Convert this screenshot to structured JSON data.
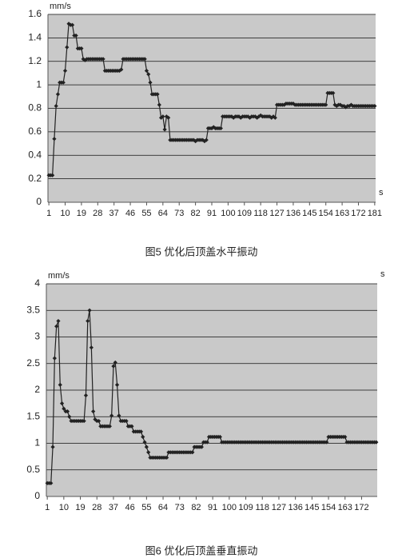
{
  "chart_data": [
    {
      "type": "line",
      "y_unit": "mm/s",
      "x_unit": "s",
      "caption": "图5 优化后顶盖水平振动",
      "ylim": [
        0,
        1.6
      ],
      "yticks": [
        0,
        0.2,
        0.4,
        0.6,
        0.8,
        1,
        1.2,
        1.4,
        1.6
      ],
      "xlim": [
        0.5,
        181.5
      ],
      "xticks": [
        1,
        10,
        19,
        28,
        37,
        46,
        55,
        64,
        73,
        82,
        91,
        100,
        109,
        118,
        127,
        136,
        145,
        154,
        163,
        172,
        181
      ],
      "grid": true,
      "color": "#222222",
      "plot_background": "#c9c9c9",
      "x": [
        1,
        2,
        3,
        4,
        5,
        6,
        7,
        8,
        9,
        10,
        11,
        12,
        13,
        14,
        15,
        16,
        17,
        18,
        19,
        20,
        21,
        22,
        23,
        24,
        25,
        26,
        27,
        28,
        29,
        30,
        31,
        32,
        33,
        34,
        35,
        36,
        37,
        38,
        39,
        40,
        41,
        42,
        43,
        44,
        45,
        46,
        47,
        48,
        49,
        50,
        51,
        52,
        53,
        54,
        55,
        56,
        57,
        58,
        59,
        60,
        61,
        62,
        63,
        64,
        65,
        66,
        67,
        68,
        69,
        70,
        71,
        72,
        73,
        74,
        75,
        76,
        77,
        78,
        79,
        80,
        81,
        82,
        83,
        84,
        85,
        86,
        87,
        88,
        89,
        90,
        91,
        92,
        93,
        94,
        95,
        96,
        97,
        98,
        99,
        100,
        101,
        102,
        103,
        104,
        105,
        106,
        107,
        108,
        109,
        110,
        111,
        112,
        113,
        114,
        115,
        116,
        117,
        118,
        119,
        120,
        121,
        122,
        123,
        124,
        125,
        126,
        127,
        128,
        129,
        130,
        131,
        132,
        133,
        134,
        135,
        136,
        137,
        138,
        139,
        140,
        141,
        142,
        143,
        144,
        145,
        146,
        147,
        148,
        149,
        150,
        151,
        152,
        153,
        154,
        155,
        156,
        157,
        158,
        159,
        160,
        161,
        162,
        163,
        164,
        165,
        166,
        167,
        168,
        169,
        170,
        171,
        172,
        173,
        174,
        175,
        176,
        177,
        178,
        179,
        180,
        181
      ],
      "values": [
        0.23,
        0.23,
        0.23,
        0.54,
        0.82,
        0.92,
        1.02,
        1.02,
        1.02,
        1.12,
        1.32,
        1.52,
        1.51,
        1.51,
        1.42,
        1.42,
        1.31,
        1.31,
        1.31,
        1.22,
        1.21,
        1.22,
        1.22,
        1.22,
        1.22,
        1.22,
        1.22,
        1.22,
        1.22,
        1.22,
        1.22,
        1.12,
        1.12,
        1.12,
        1.12,
        1.12,
        1.12,
        1.12,
        1.12,
        1.12,
        1.13,
        1.22,
        1.22,
        1.22,
        1.22,
        1.22,
        1.22,
        1.22,
        1.22,
        1.22,
        1.22,
        1.22,
        1.22,
        1.22,
        1.12,
        1.09,
        1.02,
        0.92,
        0.92,
        0.92,
        0.92,
        0.83,
        0.72,
        0.73,
        0.62,
        0.73,
        0.72,
        0.53,
        0.53,
        0.53,
        0.53,
        0.53,
        0.53,
        0.53,
        0.53,
        0.53,
        0.53,
        0.53,
        0.53,
        0.53,
        0.53,
        0.52,
        0.53,
        0.53,
        0.53,
        0.53,
        0.52,
        0.53,
        0.63,
        0.63,
        0.63,
        0.64,
        0.63,
        0.63,
        0.63,
        0.63,
        0.73,
        0.73,
        0.73,
        0.73,
        0.73,
        0.73,
        0.72,
        0.73,
        0.73,
        0.73,
        0.72,
        0.73,
        0.73,
        0.73,
        0.73,
        0.72,
        0.73,
        0.73,
        0.73,
        0.72,
        0.73,
        0.74,
        0.73,
        0.73,
        0.73,
        0.73,
        0.73,
        0.72,
        0.73,
        0.72,
        0.83,
        0.83,
        0.83,
        0.83,
        0.83,
        0.84,
        0.84,
        0.84,
        0.84,
        0.84,
        0.83,
        0.83,
        0.83,
        0.83,
        0.83,
        0.83,
        0.83,
        0.83,
        0.83,
        0.83,
        0.83,
        0.83,
        0.83,
        0.83,
        0.83,
        0.83,
        0.83,
        0.83,
        0.93,
        0.93,
        0.93,
        0.93,
        0.83,
        0.82,
        0.83,
        0.83,
        0.82,
        0.82,
        0.81,
        0.82,
        0.82,
        0.83,
        0.82,
        0.82,
        0.82,
        0.82,
        0.82,
        0.82,
        0.82,
        0.82,
        0.82,
        0.82,
        0.82,
        0.82,
        0.82
      ]
    },
    {
      "type": "line",
      "y_unit": "mm/s",
      "x_unit": "s",
      "caption": "图6 优化后顶盖垂直振动",
      "ylim": [
        0,
        4
      ],
      "yticks": [
        0,
        0.5,
        1,
        1.5,
        2,
        2.5,
        3,
        3.5,
        4
      ],
      "xlim": [
        0.5,
        180.5
      ],
      "xticks": [
        1,
        10,
        19,
        28,
        37,
        46,
        55,
        64,
        73,
        82,
        91,
        100,
        109,
        118,
        127,
        136,
        145,
        154,
        163,
        172
      ],
      "grid": true,
      "color": "#222222",
      "plot_background": "#c9c9c9",
      "x": [
        1,
        2,
        3,
        4,
        5,
        6,
        7,
        8,
        9,
        10,
        11,
        12,
        13,
        14,
        15,
        16,
        17,
        18,
        19,
        20,
        21,
        22,
        23,
        24,
        25,
        26,
        27,
        28,
        29,
        30,
        31,
        32,
        33,
        34,
        35,
        36,
        37,
        38,
        39,
        40,
        41,
        42,
        43,
        44,
        45,
        46,
        47,
        48,
        49,
        50,
        51,
        52,
        53,
        54,
        55,
        56,
        57,
        58,
        59,
        60,
        61,
        62,
        63,
        64,
        65,
        66,
        67,
        68,
        69,
        70,
        71,
        72,
        73,
        74,
        75,
        76,
        77,
        78,
        79,
        80,
        81,
        82,
        83,
        84,
        85,
        86,
        87,
        88,
        89,
        90,
        91,
        92,
        93,
        94,
        95,
        96,
        97,
        98,
        99,
        100,
        101,
        102,
        103,
        104,
        105,
        106,
        107,
        108,
        109,
        110,
        111,
        112,
        113,
        114,
        115,
        116,
        117,
        118,
        119,
        120,
        121,
        122,
        123,
        124,
        125,
        126,
        127,
        128,
        129,
        130,
        131,
        132,
        133,
        134,
        135,
        136,
        137,
        138,
        139,
        140,
        141,
        142,
        143,
        144,
        145,
        146,
        147,
        148,
        149,
        150,
        151,
        152,
        153,
        154,
        155,
        156,
        157,
        158,
        159,
        160,
        161,
        162,
        163,
        164,
        165,
        166,
        167,
        168,
        169,
        170,
        171,
        172,
        173,
        174,
        175,
        176,
        177,
        178,
        179,
        180
      ],
      "values": [
        0.25,
        0.25,
        0.25,
        0.93,
        2.6,
        3.2,
        3.3,
        2.1,
        1.75,
        1.65,
        1.6,
        1.6,
        1.5,
        1.42,
        1.42,
        1.42,
        1.42,
        1.42,
        1.42,
        1.42,
        1.42,
        1.9,
        3.3,
        3.5,
        2.8,
        1.6,
        1.45,
        1.42,
        1.42,
        1.32,
        1.32,
        1.32,
        1.32,
        1.32,
        1.32,
        1.52,
        2.45,
        2.52,
        2.1,
        1.52,
        1.42,
        1.42,
        1.42,
        1.42,
        1.32,
        1.32,
        1.32,
        1.22,
        1.22,
        1.22,
        1.22,
        1.22,
        1.12,
        1.02,
        0.93,
        0.83,
        0.73,
        0.73,
        0.73,
        0.73,
        0.73,
        0.73,
        0.73,
        0.73,
        0.73,
        0.73,
        0.83,
        0.83,
        0.83,
        0.83,
        0.83,
        0.83,
        0.83,
        0.83,
        0.83,
        0.83,
        0.83,
        0.83,
        0.83,
        0.83,
        0.93,
        0.93,
        0.93,
        0.93,
        0.93,
        1.02,
        1.02,
        1.02,
        1.12,
        1.12,
        1.12,
        1.12,
        1.12,
        1.12,
        1.12,
        1.02,
        1.02,
        1.02,
        1.02,
        1.02,
        1.02,
        1.02,
        1.02,
        1.02,
        1.02,
        1.02,
        1.02,
        1.02,
        1.02,
        1.02,
        1.02,
        1.02,
        1.02,
        1.02,
        1.02,
        1.02,
        1.02,
        1.02,
        1.02,
        1.02,
        1.02,
        1.02,
        1.02,
        1.02,
        1.02,
        1.02,
        1.02,
        1.02,
        1.02,
        1.02,
        1.02,
        1.02,
        1.02,
        1.02,
        1.02,
        1.02,
        1.02,
        1.02,
        1.02,
        1.02,
        1.02,
        1.02,
        1.02,
        1.02,
        1.02,
        1.02,
        1.02,
        1.02,
        1.02,
        1.02,
        1.02,
        1.02,
        1.02,
        1.12,
        1.12,
        1.12,
        1.12,
        1.12,
        1.12,
        1.12,
        1.12,
        1.12,
        1.12,
        1.02,
        1.02,
        1.02,
        1.02,
        1.02,
        1.02,
        1.02,
        1.02,
        1.02,
        1.02,
        1.02,
        1.02,
        1.02,
        1.02,
        1.02,
        1.02,
        1.02
      ]
    }
  ]
}
